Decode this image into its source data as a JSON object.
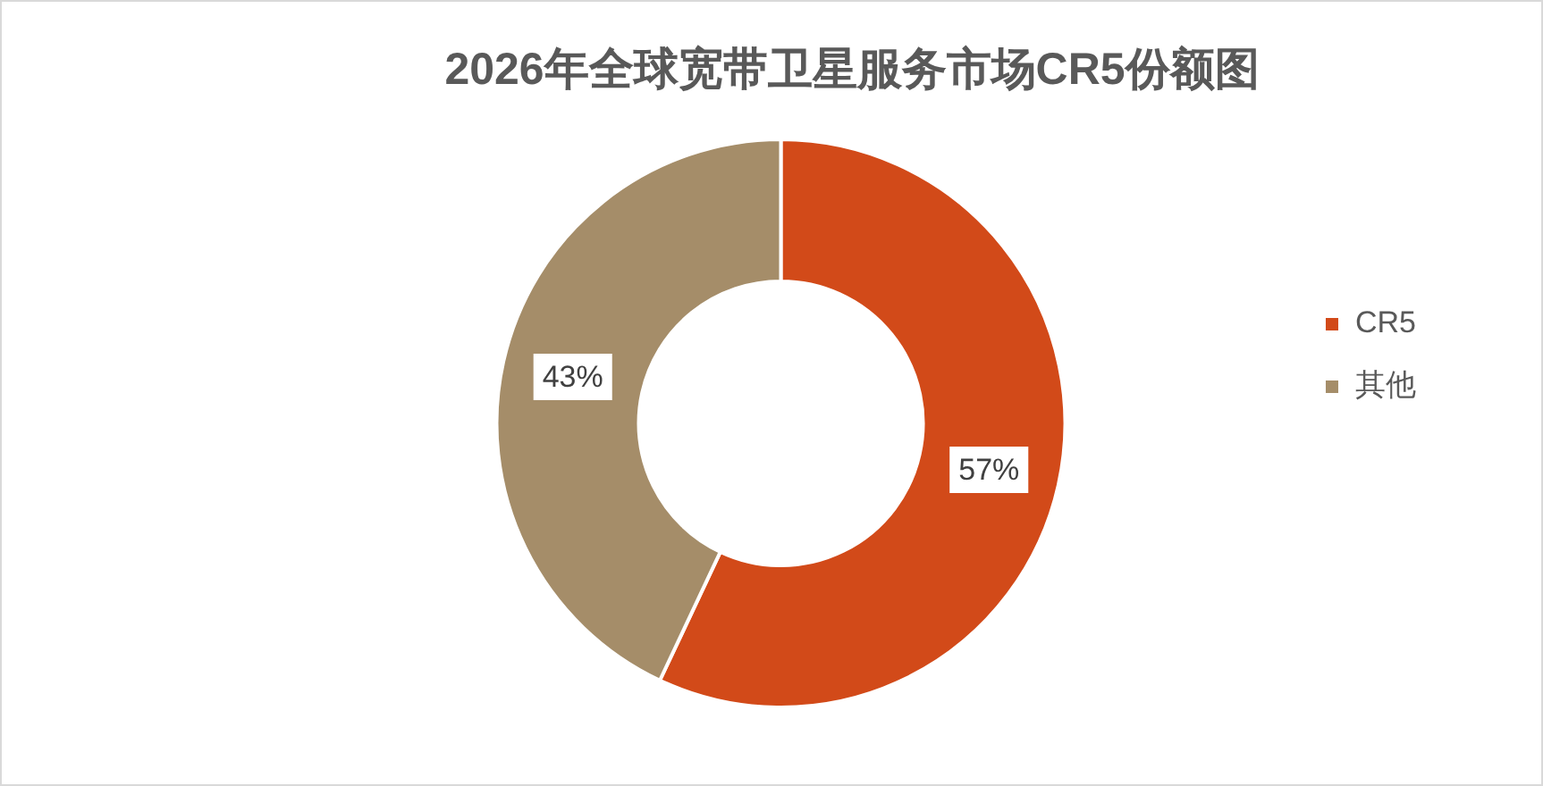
{
  "chart_data": {
    "type": "donut",
    "title": "2026年全球宽带卫星服务市场CR5份额图",
    "categories": [
      "CR5",
      "其他"
    ],
    "values": [
      57,
      43
    ],
    "colors": [
      "#d24a19",
      "#a58d69"
    ],
    "value_labels": [
      "57%",
      "43%"
    ],
    "legend": "right"
  }
}
